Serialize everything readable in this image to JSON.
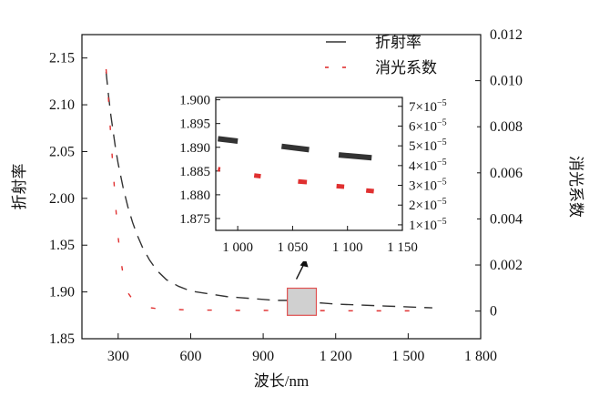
{
  "chart_data": [
    {
      "type": "line",
      "xlabel": "波长/nm",
      "ylabel": "折射率",
      "y2label": "消光系数",
      "xlim": [
        150,
        1800
      ],
      "ylim": [
        1.85,
        2.175
      ],
      "y2lim": [
        -0.0012,
        0.012
      ],
      "x_ticks": [
        300,
        600,
        900,
        1200,
        1500,
        1800
      ],
      "x_tick_labels": [
        "300",
        "600",
        "900",
        "1 200",
        "1 500",
        "1 800"
      ],
      "y_ticks": [
        1.85,
        1.9,
        1.95,
        2.0,
        2.05,
        2.1,
        2.15
      ],
      "y_tick_labels": [
        "1.85",
        "1.90",
        "1.95",
        "2.00",
        "2.05",
        "2.10",
        "2.15"
      ],
      "y2_ticks": [
        0,
        0.002,
        0.004,
        0.006,
        0.008,
        0.01,
        0.012
      ],
      "y2_tick_labels": [
        "0",
        "0.002",
        "0.004",
        "0.006",
        "0.008",
        "0.010",
        "0.012"
      ],
      "legend": {
        "placement": "top-right",
        "entries": [
          "折射率",
          "消光系数"
        ]
      },
      "series": [
        {
          "name": "折射率",
          "axis": "left",
          "color": "#333333",
          "style": "dashed",
          "x": [
            250,
            260,
            270,
            280,
            290,
            300,
            320,
            340,
            360,
            380,
            400,
            430,
            460,
            500,
            550,
            600,
            650,
            700,
            750,
            800,
            850,
            900,
            950,
            1000,
            1050,
            1100,
            1150,
            1200,
            1300,
            1400,
            1500,
            1600
          ],
          "y": [
            2.135,
            2.11,
            2.088,
            2.07,
            2.052,
            2.037,
            2.012,
            1.991,
            1.974,
            1.96,
            1.948,
            1.934,
            1.923,
            1.913,
            1.906,
            1.901,
            1.899,
            1.897,
            1.895,
            1.894,
            1.893,
            1.892,
            1.891,
            1.891,
            1.89,
            1.889,
            1.888,
            1.887,
            1.886,
            1.885,
            1.884,
            1.883
          ]
        },
        {
          "name": "消光系数",
          "axis": "right",
          "color": "#e03030",
          "style": "dashed",
          "x": [
            250,
            260,
            270,
            280,
            290,
            300,
            310,
            320,
            330,
            340,
            360,
            380,
            400,
            450,
            500,
            600,
            700,
            800,
            900,
            1000,
            1100,
            1200,
            1300,
            1400,
            1500,
            1600
          ],
          "y": [
            0.0105,
            0.0092,
            0.0075,
            0.006,
            0.0045,
            0.0032,
            0.0023,
            0.0016,
            0.0011,
            0.0008,
            0.0005,
            0.0003,
            0.0002,
            0.00012,
            8e-05,
            5e-05,
            4e-05,
            3e-05,
            3e-05,
            2e-05,
            2e-05,
            2e-05,
            1e-05,
            1e-05,
            1e-05,
            1e-05
          ]
        }
      ],
      "highlight_region": {
        "x": [
          1000,
          1120
        ],
        "y": [
          1.875,
          1.904
        ]
      }
    },
    {
      "type": "line",
      "role": "inset",
      "xlim": [
        980,
        1150
      ],
      "ylim": [
        1.8725,
        1.9005
      ],
      "y2lim": [
        7.2e-06,
        7.45e-05
      ],
      "x_ticks": [
        1000,
        1050,
        1100,
        1150
      ],
      "x_tick_labels": [
        "1 000",
        "1 050",
        "1 100",
        "1 150"
      ],
      "y_ticks": [
        1.875,
        1.88,
        1.885,
        1.89,
        1.895,
        1.9
      ],
      "y_tick_labels": [
        "1.875",
        "1.880",
        "1.885",
        "1.890",
        "1.895",
        "1.900"
      ],
      "y2_ticks": [
        1e-05,
        2e-05,
        3e-05,
        4e-05,
        5e-05,
        6e-05,
        7e-05
      ],
      "y2_tick_labels": [
        "1×10",
        "2×10",
        "3×10",
        "4×10",
        "5×10",
        "6×10",
        "7×10"
      ],
      "y2_tick_exponent": "−5",
      "series": [
        {
          "name": "折射率",
          "axis": "left",
          "color": "#333333",
          "segments": [
            {
              "x": [
                982,
                1000
              ],
              "y": [
                1.8918,
                1.8913
              ]
            },
            {
              "x": [
                1040,
                1065
              ],
              "y": [
                1.8902,
                1.8895
              ]
            },
            {
              "x": [
                1092,
                1122
              ],
              "y": [
                1.8884,
                1.8878
              ]
            }
          ]
        },
        {
          "name": "消光系数",
          "axis": "right",
          "color": "#e03030",
          "segments": [
            {
              "x": [
                982,
                984
              ],
              "y": [
                3.82e-05,
                3.8e-05
              ]
            },
            {
              "x": [
                1015,
                1021
              ],
              "y": [
                3.5e-05,
                3.46e-05
              ]
            },
            {
              "x": [
                1055,
                1063
              ],
              "y": [
                3.2e-05,
                3.16e-05
              ]
            },
            {
              "x": [
                1090,
                1097
              ],
              "y": [
                2.96e-05,
                2.93e-05
              ]
            },
            {
              "x": [
                1117,
                1124
              ],
              "y": [
                2.74e-05,
                2.7e-05
              ]
            }
          ]
        }
      ]
    }
  ]
}
